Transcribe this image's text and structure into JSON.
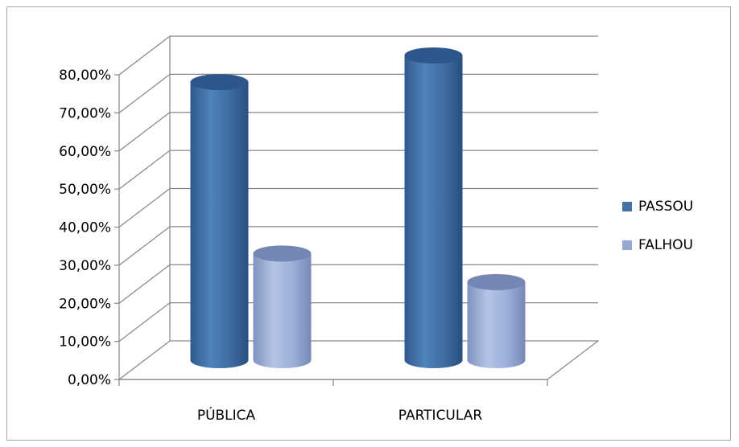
{
  "chart_data": {
    "type": "bar",
    "style": "3d-cylinder",
    "categories": [
      "PÚBLICA",
      "PARTICULAR"
    ],
    "series": [
      {
        "name": "PASSOU",
        "values": [
          73.0,
          80.0
        ],
        "color": "#4472a8"
      },
      {
        "name": "FALHOU",
        "values": [
          28.0,
          20.5
        ],
        "color": "#95a9d4"
      }
    ],
    "ylim": [
      0,
      80
    ],
    "yticks": [
      "0,00%",
      "10,00%",
      "20,00%",
      "30,00%",
      "40,00%",
      "50,00%",
      "60,00%",
      "70,00%",
      "80,00%"
    ],
    "grid": true,
    "legend": "right"
  }
}
